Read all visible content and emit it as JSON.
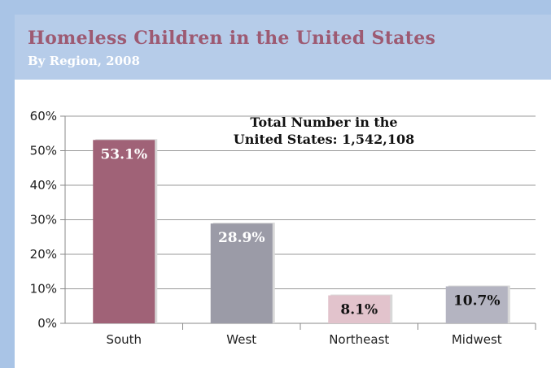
{
  "header": {
    "title": "Homeless Children in the United States",
    "subtitle": "By Region, 2008"
  },
  "colors": {
    "south": "#a06277",
    "west": "#9b9ba7",
    "northeast": "#e2c3cc",
    "midwest": "#b4b4c1",
    "title": "#9d5a72"
  },
  "chart_data": {
    "type": "bar",
    "title": "Homeless Children in the United States",
    "subtitle": "By Region, 2008",
    "categories": [
      "South",
      "West",
      "Northeast",
      "Midwest"
    ],
    "values": [
      53.1,
      28.9,
      8.1,
      10.7
    ],
    "value_labels": [
      "53.1%",
      "28.9%",
      "8.1%",
      "10.7%"
    ],
    "ylim": [
      0,
      60
    ],
    "yticks": [
      0,
      10,
      20,
      30,
      40,
      50,
      60
    ],
    "ytick_labels": [
      "0%",
      "10%",
      "20%",
      "30%",
      "40%",
      "50%",
      "60%"
    ],
    "xlabel": "",
    "ylabel": "",
    "grid": true,
    "annotation": [
      "Total Number in the",
      "United States: 1,542,108"
    ]
  }
}
